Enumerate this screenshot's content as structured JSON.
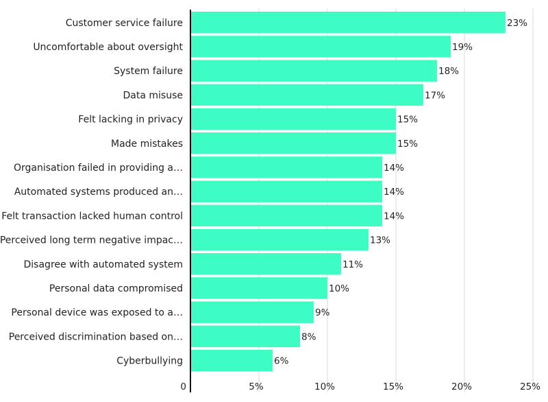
{
  "chart_data": {
    "type": "bar",
    "orientation": "horizontal",
    "title": "",
    "xlabel": "",
    "ylabel": "",
    "xlim": [
      0,
      25
    ],
    "ticks": [
      0,
      5,
      10,
      15,
      20,
      25
    ],
    "tick_labels": [
      "0",
      "5%",
      "10%",
      "15%",
      "20%",
      "25%"
    ],
    "grid": true,
    "categories": [
      "Customer service failure",
      "Uncomfortable about oversight",
      "System failure",
      "Data misuse",
      "Felt lacking in privacy",
      "Made mistakes",
      "Organisation failed in providing a…",
      "Automated systems produced an…",
      "Felt transaction lacked human control",
      "Perceived long term negative impac…",
      "Disagree with automated system",
      "Personal data compromised",
      "Personal device was exposed to a…",
      "Perceived discrimination based on…",
      "Cyberbullying"
    ],
    "values": [
      23,
      19,
      18,
      17,
      15,
      15,
      14,
      14,
      14,
      13,
      11,
      10,
      9,
      8,
      6
    ],
    "value_labels": [
      "23%",
      "19%",
      "18%",
      "17%",
      "15%",
      "15%",
      "14%",
      "14%",
      "14%",
      "13%",
      "11%",
      "10%",
      "9%",
      "8%",
      "6%"
    ],
    "colors": {
      "bar": "#3dfdc4",
      "grid": "#d9d9d9",
      "axis": "#111111",
      "text": "#222222"
    }
  }
}
